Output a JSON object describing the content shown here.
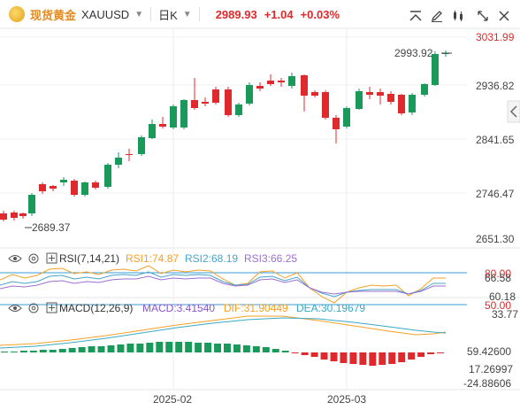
{
  "header": {
    "symbol_name": "现货黄金",
    "symbol_code": "XAUUSD",
    "period": "日K",
    "price": "2989.93",
    "change": "+1.04",
    "change_pct": "+0.03%",
    "icons": [
      "minimize-icon",
      "draw-icon",
      "candle-type-icon",
      "fullscreen-icon",
      "close-icon"
    ]
  },
  "main": {
    "price_axis": [
      "3031.99",
      "2936.82",
      "2841.65",
      "2746.47",
      "2651.30"
    ],
    "high_label": "2993.92",
    "low_label": "2689.37",
    "colors": {
      "up": "#1a9a5a",
      "down": "#e0292c"
    }
  },
  "rsi": {
    "title": "RSI(7,14,21)",
    "rsi1": "RSI1:74.87",
    "rsi2": "RSI2:68.19",
    "rsi3": "RSI3:66.25",
    "axis": [
      "80.00",
      "66.58",
      "60.18",
      "50.00",
      "33.77"
    ],
    "colors": {
      "rsi1": "#f5a024",
      "rsi2": "#4aa3c9",
      "rsi3": "#9b6fd0"
    }
  },
  "macd": {
    "title": "MACD(12,26,9)",
    "macd": "MACD:3.41540",
    "dif": "DIF:31.90449",
    "dea": "DEA:30.19679",
    "axis": [
      "59.42600",
      "17.26997",
      "-24.88606"
    ],
    "colors": {
      "macd": "#8a57c7",
      "dif": "#f5a024",
      "dea": "#3aa8c4"
    }
  },
  "time_axis": [
    "2025-02",
    "2025-03"
  ]
}
